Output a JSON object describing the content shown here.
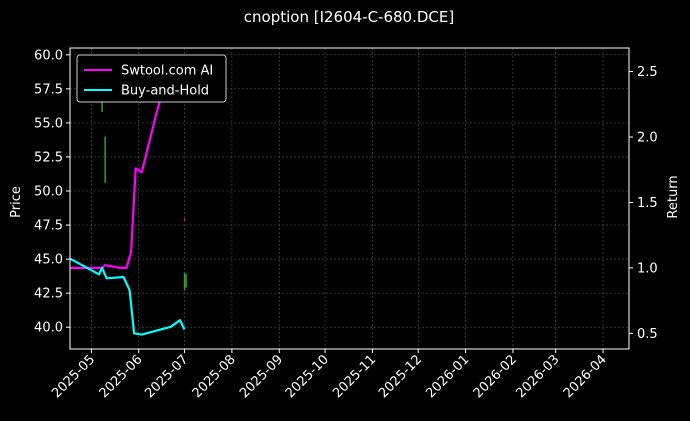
{
  "chart_data": {
    "type": "line",
    "title": "cnoption [I2604-C-680.DCE]",
    "xlabel": "",
    "ylabel": "Price",
    "ylabel_right": "Return",
    "x_ticks": [
      "2025-05",
      "2025-06",
      "2025-07",
      "2025-08",
      "2025-09",
      "2025-10",
      "2025-11",
      "2025-12",
      "2026-01",
      "2026-02",
      "2026-03",
      "2026-04"
    ],
    "xlim": [
      "2025-04-17",
      "2026-04-18"
    ],
    "ylim": [
      38.4,
      60.5
    ],
    "y_ticks": [
      40.0,
      42.5,
      45.0,
      47.5,
      50.0,
      52.5,
      55.0,
      57.5,
      60.0
    ],
    "ylim_right": [
      0.38,
      2.68
    ],
    "y_ticks_right": [
      0.5,
      1.0,
      1.5,
      2.0,
      2.5
    ],
    "grid": true,
    "legend_position": "top-left",
    "colors": {
      "background": "#000000",
      "candle_up": "#2ca02c",
      "candle_down": "#d62728",
      "swtool": "#ff00ff",
      "buy_hold": "#00ffff",
      "grid": "#555555"
    },
    "series": [
      {
        "name": "Swtool.com AI",
        "axis": "right",
        "color": "#ff00ff",
        "points": [
          {
            "x": "2025-04-17",
            "y": 1.0
          },
          {
            "x": "2025-05-08",
            "y": 1.0
          },
          {
            "x": "2025-05-10",
            "y": 1.02
          },
          {
            "x": "2025-05-20",
            "y": 1.0
          },
          {
            "x": "2025-05-24",
            "y": 1.0
          },
          {
            "x": "2025-05-27",
            "y": 1.12
          },
          {
            "x": "2025-05-30",
            "y": 1.76
          },
          {
            "x": "2025-06-03",
            "y": 1.73
          },
          {
            "x": "2025-06-13",
            "y": 2.2
          },
          {
            "x": "2025-06-20",
            "y": 2.48
          },
          {
            "x": "2025-06-23",
            "y": 2.62
          }
        ]
      },
      {
        "name": "Buy-and-Hold",
        "axis": "right",
        "color": "#00ffff",
        "points": [
          {
            "x": "2025-04-17",
            "y": 1.07
          },
          {
            "x": "2025-04-25",
            "y": 1.02
          },
          {
            "x": "2025-05-06",
            "y": 0.95
          },
          {
            "x": "2025-05-08",
            "y": 1.0
          },
          {
            "x": "2025-05-11",
            "y": 0.92
          },
          {
            "x": "2025-05-22",
            "y": 0.93
          },
          {
            "x": "2025-05-26",
            "y": 0.83
          },
          {
            "x": "2025-05-29",
            "y": 0.5
          },
          {
            "x": "2025-06-03",
            "y": 0.49
          },
          {
            "x": "2025-06-22",
            "y": 0.55
          },
          {
            "x": "2025-06-28",
            "y": 0.6
          },
          {
            "x": "2025-07-01",
            "y": 0.53
          }
        ]
      }
    ],
    "candles": [
      {
        "x": "2025-05-08",
        "low": 55.8,
        "high": 56.8,
        "direction": "up"
      },
      {
        "x": "2025-05-10",
        "low": 50.6,
        "high": 54.0,
        "direction": "up"
      },
      {
        "x": "2025-07-01",
        "low": 47.8,
        "high": 48.0,
        "direction": "down"
      },
      {
        "x": "2025-07-01",
        "low": 42.7,
        "high": 44.0,
        "direction": "up"
      },
      {
        "x": "2025-07-02",
        "low": 42.9,
        "high": 43.9,
        "direction": "up"
      }
    ]
  }
}
